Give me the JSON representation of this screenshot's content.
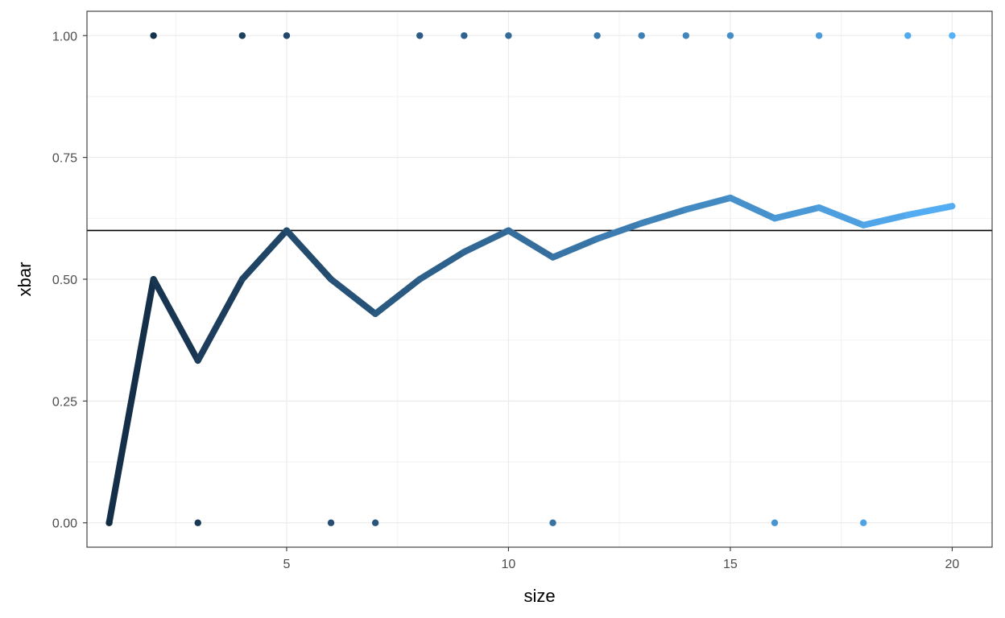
{
  "chart_data": {
    "type": "line",
    "title": "",
    "xlabel": "size",
    "ylabel": "xbar",
    "xlim": [
      0.5,
      20.9
    ],
    "ylim": [
      -0.05,
      1.05
    ],
    "x_ticks": [
      5,
      10,
      15,
      20
    ],
    "x_tick_labels": [
      "5",
      "10",
      "15",
      "20"
    ],
    "x_minor_ticks": [
      2.5,
      7.5,
      12.5,
      17.5
    ],
    "y_ticks": [
      0,
      0.25,
      0.5,
      0.75,
      1.0
    ],
    "y_tick_labels": [
      "0.00",
      "0.25",
      "0.50",
      "0.75",
      "1.00"
    ],
    "y_minor_ticks": [
      0.125,
      0.375,
      0.625,
      0.875
    ],
    "grid": true,
    "reference_line": {
      "y": 0.6,
      "color": "#000000"
    },
    "color_gradient": {
      "low": "#132B43",
      "high": "#56B1F7"
    },
    "series": [
      {
        "kind": "line",
        "x": [
          1,
          2,
          3,
          4,
          5,
          6,
          7,
          8,
          9,
          10,
          11,
          12,
          13,
          14,
          15,
          16,
          17,
          18,
          19,
          20
        ],
        "y": [
          0,
          0.5,
          0.333,
          0.5,
          0.6,
          0.5,
          0.429,
          0.5,
          0.556,
          0.6,
          0.545,
          0.583,
          0.615,
          0.643,
          0.667,
          0.625,
          0.647,
          0.611,
          0.632,
          0.65
        ]
      },
      {
        "kind": "points",
        "x": [
          1,
          2,
          3,
          4,
          5,
          6,
          7,
          8,
          9,
          10,
          11,
          12,
          13,
          14,
          15,
          16,
          17,
          18,
          19,
          20
        ],
        "y": [
          0,
          1,
          0,
          1,
          1,
          0,
          0,
          1,
          1,
          1,
          0,
          1,
          1,
          1,
          1,
          0,
          1,
          0,
          1,
          1
        ]
      }
    ]
  }
}
